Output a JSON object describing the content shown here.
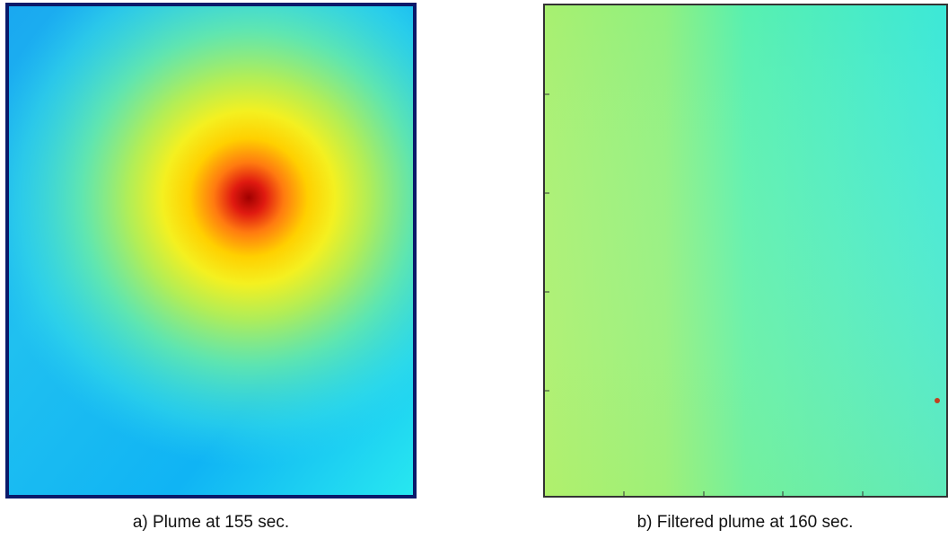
{
  "figure": {
    "panels": [
      {
        "caption": "a) Plume at 155 sec."
      },
      {
        "caption": "b) Filtered plume at 160 sec."
      }
    ]
  }
}
